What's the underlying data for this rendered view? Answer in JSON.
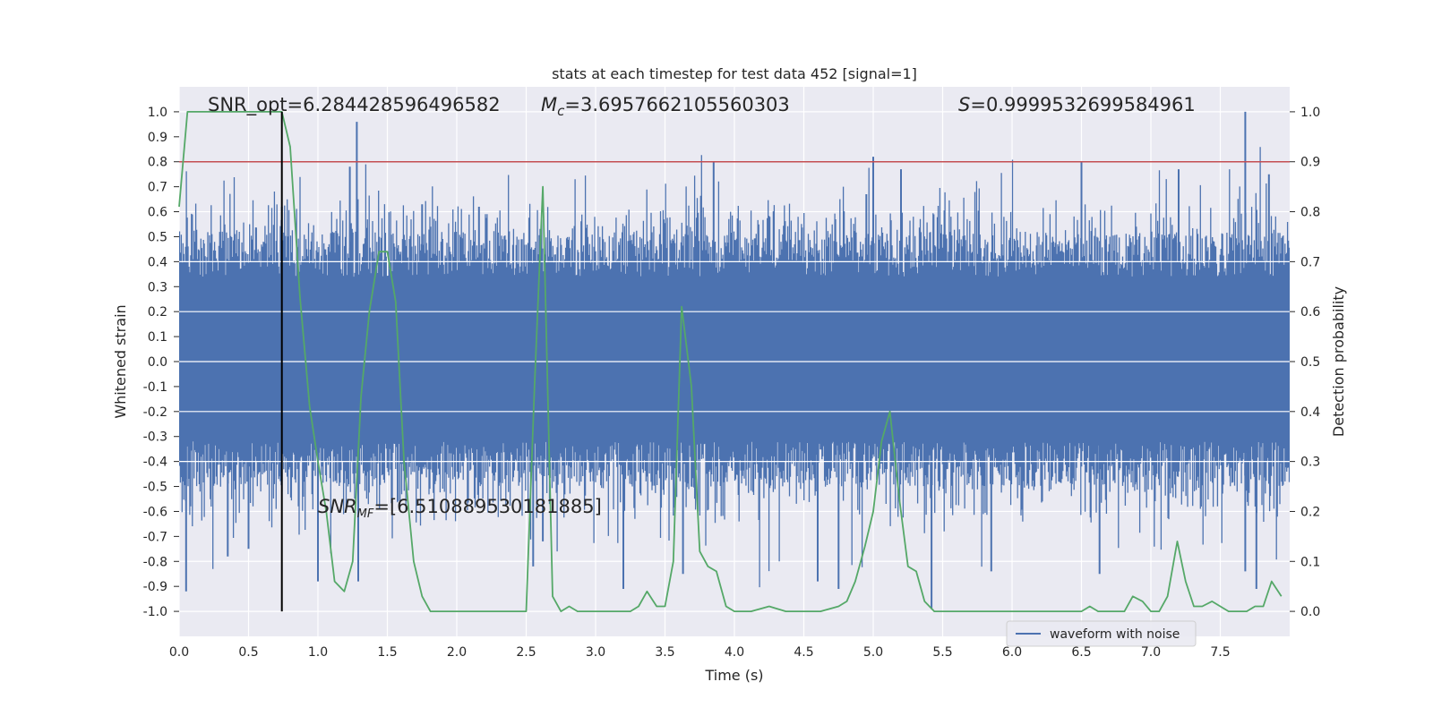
{
  "chart_data": {
    "type": "line",
    "title": "stats at each timestep for test data 452 [signal=1]",
    "xlabel": "Time (s)",
    "ylabel": "Whitened strain",
    "ylabel_right": "Detection probability",
    "xlim": [
      0,
      8
    ],
    "ylim": [
      -1.1,
      1.1
    ],
    "ylim_right": [
      -0.05,
      1.05
    ],
    "xticks": [
      "0.0",
      "0.5",
      "1.0",
      "1.5",
      "2.0",
      "2.5",
      "3.0",
      "3.5",
      "4.0",
      "4.5",
      "5.0",
      "5.5",
      "6.0",
      "6.5",
      "7.0",
      "7.5"
    ],
    "yticks": [
      "1.0",
      "0.9",
      "0.8",
      "0.7",
      "0.6",
      "0.5",
      "0.4",
      "0.3",
      "0.2",
      "0.1",
      "0.0",
      "-0.1",
      "-0.2",
      "-0.3",
      "-0.4",
      "-0.5",
      "-0.6",
      "-0.7",
      "-0.8",
      "-0.9",
      "-1.0"
    ],
    "yticks_right": [
      "1.0",
      "0.9",
      "0.8",
      "0.7",
      "0.6",
      "0.5",
      "0.4",
      "0.3",
      "0.2",
      "0.1",
      "0.0"
    ],
    "grid": true,
    "legend": {
      "entries": [
        "waveform with noise"
      ],
      "position": "lower right"
    },
    "annotations": {
      "snr_opt": "SNR_opt=6.284428596496582",
      "mc_label": "M",
      "mc_sub": "c",
      "mc_value": "=3.6957662105560303",
      "s_label": "S",
      "s_value": "=0.9999532699584961",
      "snr_mf_label": "SNR",
      "snr_mf_sub": "MF",
      "snr_mf_value": "=[6.510889530181885]"
    },
    "threshold": {
      "y_right": 0.9,
      "color": "#c44e52"
    },
    "event_marker": {
      "x": 0.74,
      "y_bottom": -1.0,
      "y_top": 1.0
    },
    "colors": {
      "waveform": "#4c72b0",
      "probability": "#55a868",
      "background": "#eaeaf2",
      "grid": "#ffffff"
    },
    "series": [
      {
        "name": "waveform with noise",
        "kind": "waveform",
        "note_envelope_peaks": [
          [
            0.05,
            -0.92
          ],
          [
            0.35,
            -0.78
          ],
          [
            0.5,
            -0.75
          ],
          [
            0.74,
            0.62
          ],
          [
            1.0,
            -0.88
          ],
          [
            1.23,
            0.78
          ],
          [
            1.28,
            0.96
          ],
          [
            1.29,
            -0.88
          ],
          [
            1.75,
            0.63
          ],
          [
            2.16,
            0.62
          ],
          [
            2.55,
            -0.82
          ],
          [
            2.62,
            -0.72
          ],
          [
            3.2,
            -0.91
          ],
          [
            3.63,
            -0.85
          ],
          [
            3.85,
            0.8
          ],
          [
            4.6,
            -0.88
          ],
          [
            4.75,
            -0.91
          ],
          [
            4.95,
            0.67
          ],
          [
            5.0,
            0.82
          ],
          [
            5.2,
            0.77
          ],
          [
            5.42,
            -0.99
          ],
          [
            5.85,
            -0.84
          ],
          [
            6.5,
            0.8
          ],
          [
            6.63,
            -0.85
          ],
          [
            7.2,
            0.77
          ],
          [
            7.68,
            1.0
          ],
          [
            7.68,
            -0.84
          ],
          [
            7.76,
            -0.91
          ],
          [
            7.85,
            0.75
          ]
        ]
      },
      {
        "name": "",
        "kind": "probability",
        "x": [
          0.0,
          0.06,
          0.12,
          0.2,
          0.3,
          0.4,
          0.5,
          0.6,
          0.7,
          0.74,
          0.8,
          0.87,
          0.94,
          1.0,
          1.06,
          1.12,
          1.19,
          1.25,
          1.31,
          1.37,
          1.44,
          1.5,
          1.56,
          1.62,
          1.69,
          1.75,
          1.81,
          1.87,
          1.94,
          2.0,
          2.12,
          2.25,
          2.37,
          2.5,
          2.56,
          2.62,
          2.69,
          2.75,
          2.81,
          2.87,
          2.94,
          3.0,
          3.12,
          3.25,
          3.31,
          3.37,
          3.44,
          3.5,
          3.56,
          3.62,
          3.69,
          3.75,
          3.81,
          3.87,
          3.94,
          4.0,
          4.12,
          4.25,
          4.37,
          4.5,
          4.62,
          4.75,
          4.81,
          4.87,
          4.94,
          5.0,
          5.06,
          5.12,
          5.19,
          5.25,
          5.31,
          5.37,
          5.44,
          5.5,
          5.62,
          5.75,
          5.87,
          6.0,
          6.12,
          6.25,
          6.37,
          6.5,
          6.56,
          6.62,
          6.69,
          6.75,
          6.81,
          6.87,
          6.94,
          7.0,
          7.06,
          7.12,
          7.19,
          7.25,
          7.31,
          7.37,
          7.44,
          7.5,
          7.56,
          7.62,
          7.69,
          7.75,
          7.81,
          7.87,
          7.94
        ],
        "y": [
          0.81,
          1.0,
          1.0,
          1.0,
          1.0,
          1.0,
          1.0,
          1.0,
          1.0,
          1.0,
          0.93,
          0.63,
          0.41,
          0.3,
          0.2,
          0.06,
          0.04,
          0.1,
          0.43,
          0.6,
          0.72,
          0.72,
          0.62,
          0.3,
          0.1,
          0.03,
          0.0,
          0.0,
          0.0,
          0.0,
          0.0,
          0.0,
          0.0,
          0.0,
          0.45,
          0.85,
          0.03,
          0.0,
          0.01,
          0.0,
          0.0,
          0.0,
          0.0,
          0.0,
          0.01,
          0.04,
          0.01,
          0.01,
          0.1,
          0.61,
          0.45,
          0.12,
          0.09,
          0.08,
          0.01,
          0.0,
          0.0,
          0.01,
          0.0,
          0.0,
          0.0,
          0.01,
          0.02,
          0.06,
          0.13,
          0.2,
          0.34,
          0.4,
          0.22,
          0.09,
          0.08,
          0.02,
          0.0,
          0.0,
          0.0,
          0.0,
          0.0,
          0.0,
          0.0,
          0.0,
          0.0,
          0.0,
          0.01,
          0.0,
          0.0,
          0.0,
          0.0,
          0.03,
          0.02,
          0.0,
          0.0,
          0.03,
          0.14,
          0.06,
          0.01,
          0.01,
          0.02,
          0.01,
          0.0,
          0.0,
          0.0,
          0.01,
          0.01,
          0.06,
          0.03
        ]
      }
    ]
  }
}
